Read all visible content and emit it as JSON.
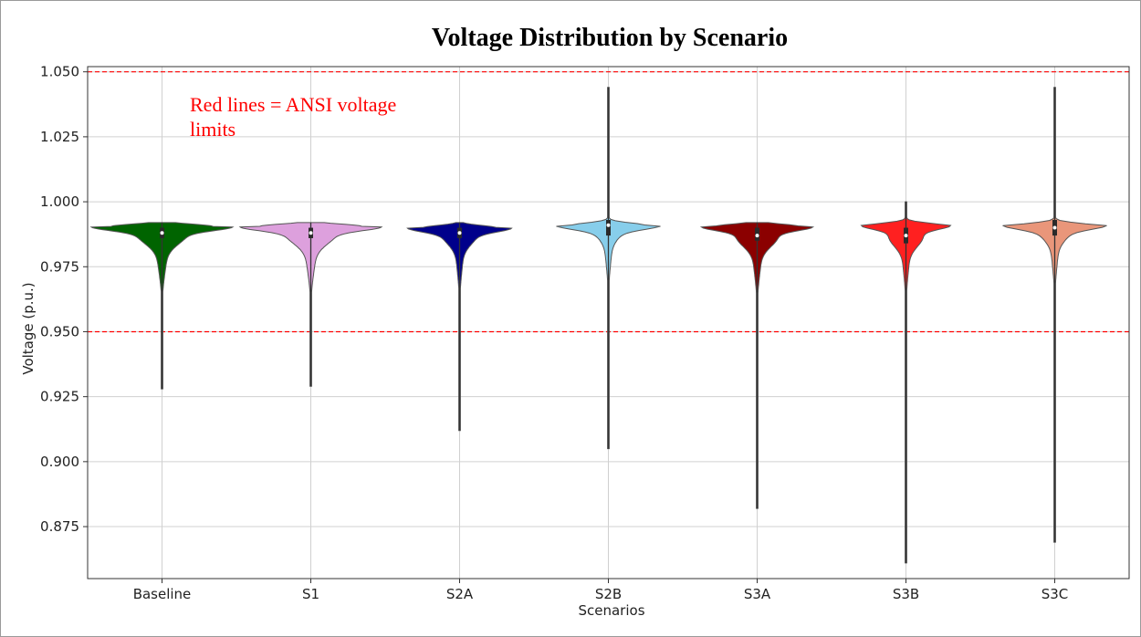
{
  "chart_data": {
    "type": "violin",
    "title": "Voltage Distribution by Scenario",
    "xlabel": "Scenarios",
    "ylabel": "Voltage (p.u.)",
    "ylim": [
      0.855,
      1.052
    ],
    "yticks": [
      "0.875",
      "0.900",
      "0.925",
      "0.950",
      "0.975",
      "1.000",
      "1.025",
      "1.050"
    ],
    "grid": true,
    "annotation": [
      "Red lines = ANSI voltage",
      "limits"
    ],
    "reference_lines": [
      {
        "value": 0.95,
        "color": "#ff0000",
        "style": "dashed"
      },
      {
        "value": 1.05,
        "color": "#ff0000",
        "style": "dashed"
      }
    ],
    "categories": [
      "Baseline",
      "S1",
      "S2A",
      "S2B",
      "S3A",
      "S3B",
      "S3C"
    ],
    "series": [
      {
        "category": "Baseline",
        "color": "#006400",
        "min": 0.928,
        "max": 0.992,
        "q1": 0.986,
        "median": 0.988,
        "q3": 0.99,
        "mode": 0.9905,
        "mode_width": 0.95
      },
      {
        "category": "S1",
        "color": "#dda0dd",
        "min": 0.929,
        "max": 0.992,
        "q1": 0.986,
        "median": 0.988,
        "q3": 0.99,
        "mode": 0.9905,
        "mode_width": 0.95
      },
      {
        "category": "S2A",
        "color": "#00008b",
        "min": 0.912,
        "max": 0.992,
        "q1": 0.986,
        "median": 0.988,
        "q3": 0.99,
        "mode": 0.99,
        "mode_width": 0.7
      },
      {
        "category": "S2B",
        "color": "#87ceeb",
        "min": 0.905,
        "max": 1.044,
        "q1": 0.987,
        "median": 0.991,
        "q3": 0.993,
        "mode": 0.991,
        "mode_width": 0.7
      },
      {
        "category": "S3A",
        "color": "#8b0000",
        "min": 0.882,
        "max": 0.992,
        "q1": 0.985,
        "median": 0.987,
        "q3": 0.99,
        "mode": 0.9905,
        "mode_width": 0.75
      },
      {
        "category": "S3B",
        "color": "#ff2020",
        "min": 0.861,
        "max": 1.0,
        "q1": 0.984,
        "median": 0.987,
        "q3": 0.99,
        "mode": 0.991,
        "mode_width": 0.6
      },
      {
        "category": "S3C",
        "color": "#e9967a",
        "min": 0.869,
        "max": 1.044,
        "q1": 0.987,
        "median": 0.99,
        "q3": 0.993,
        "mode": 0.991,
        "mode_width": 0.7
      }
    ]
  }
}
